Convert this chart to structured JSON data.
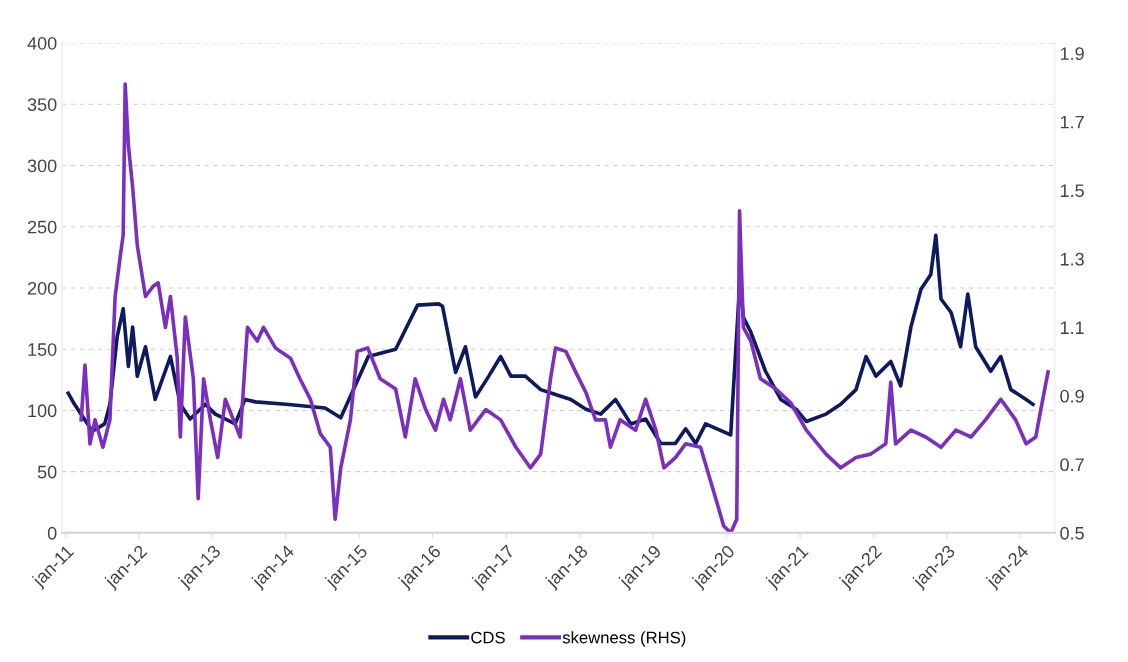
{
  "chart_data": {
    "type": "line",
    "xlim": [
      "2010-12-15",
      "2024-06-20"
    ],
    "xticks": [
      {
        "value": "2011-01-01",
        "label": "jan-11"
      },
      {
        "value": "2012-01-01",
        "label": "jan-12"
      },
      {
        "value": "2013-01-01",
        "label": "jan-13"
      },
      {
        "value": "2014-01-01",
        "label": "jan-14"
      },
      {
        "value": "2015-01-01",
        "label": "jan-15"
      },
      {
        "value": "2016-01-01",
        "label": "jan-16"
      },
      {
        "value": "2017-01-01",
        "label": "jan-17"
      },
      {
        "value": "2018-01-01",
        "label": "jan-18"
      },
      {
        "value": "2019-01-01",
        "label": "jan-19"
      },
      {
        "value": "2020-01-01",
        "label": "jan-20"
      },
      {
        "value": "2021-01-01",
        "label": "jan-21"
      },
      {
        "value": "2022-01-01",
        "label": "jan-22"
      },
      {
        "value": "2023-01-01",
        "label": "jan-23"
      },
      {
        "value": "2024-01-01",
        "label": "jan-24"
      }
    ],
    "ylim": [
      0,
      400
    ],
    "yticks": [
      0,
      50,
      100,
      150,
      200,
      250,
      300,
      350,
      400
    ],
    "y2lim": [
      0.5,
      1.93
    ],
    "y2ticks": [
      0.5,
      0.7,
      0.9,
      1.1,
      1.3,
      1.5,
      1.7,
      1.9
    ],
    "grid": "y",
    "legend": "bottom",
    "line_style": "solid",
    "series": [
      {
        "name": "CDS",
        "color": "#0d1b5e",
        "x": [
          "2011-01-15",
          "2011-02-15",
          "2011-05-15",
          "2011-07-15",
          "2011-08-10",
          "2011-09-15",
          "2011-10-15",
          "2011-11-10",
          "2011-12-01",
          "2011-12-24",
          "2012-02-03",
          "2012-03-22",
          "2012-04-15",
          "2012-06-06",
          "2012-07-25",
          "2012-09-12",
          "2012-11-27",
          "2013-01-15",
          "2013-04-24",
          "2013-06-12",
          "2013-08-03",
          "2014-01-01",
          "2014-07-15",
          "2014-10-01",
          "2015-02-15",
          "2015-07-01",
          "2015-10-18",
          "2016-02-01",
          "2016-02-19",
          "2016-04-24",
          "2016-06-12",
          "2016-08-01",
          "2016-10-06",
          "2016-12-04",
          "2017-01-24",
          "2017-04-06",
          "2017-06-21",
          "2017-09-03",
          "2017-11-18",
          "2018-02-01",
          "2018-04-15",
          "2018-06-28",
          "2018-09-12",
          "2018-11-25",
          "2019-02-08",
          "2019-04-22",
          "2019-06-12",
          "2019-08-01",
          "2019-09-19",
          "2020-01-22",
          "2020-03-08",
          "2020-03-25",
          "2020-05-01",
          "2020-07-13",
          "2020-09-27",
          "2020-12-12",
          "2021-02-01",
          "2021-05-10",
          "2021-07-22",
          "2021-10-06",
          "2021-11-25",
          "2022-01-13",
          "2022-03-28",
          "2022-05-16",
          "2022-07-06",
          "2022-08-25",
          "2022-10-13",
          "2022-11-07",
          "2022-12-03",
          "2023-01-22",
          "2023-03-10",
          "2023-04-15",
          "2023-05-24",
          "2023-08-07",
          "2023-09-26",
          "2023-11-15",
          "2024-01-30",
          "2024-03-04"
        ],
        "values": [
          114,
          105,
          83,
          89,
          105,
          160,
          183,
          136,
          168,
          128,
          152,
          109,
          120,
          144,
          105,
          93,
          105,
          97,
          89,
          109,
          107,
          105,
          102,
          94,
          144,
          150,
          186,
          187,
          185,
          131,
          152,
          111,
          128,
          144,
          128,
          128,
          117,
          113,
          109,
          101,
          97,
          109,
          89,
          93,
          73,
          73,
          85,
          73,
          89,
          80,
          207,
          176,
          164,
          132,
          109,
          101,
          91,
          97,
          105,
          117,
          144,
          128,
          140,
          120,
          168,
          199,
          211,
          243,
          191,
          180,
          152,
          195,
          152,
          132,
          144,
          117,
          109,
          105
        ]
      },
      {
        "name": "skewness (RHS)",
        "color": "#7b2fbe",
        "axis": "y2",
        "x": [
          "2011-03-20",
          "2011-04-08",
          "2011-05-03",
          "2011-05-28",
          "2011-07-06",
          "2011-08-10",
          "2011-09-05",
          "2011-10-01",
          "2011-10-15",
          "2011-10-25",
          "2011-11-10",
          "2011-12-01",
          "2011-12-24",
          "2012-02-03",
          "2012-03-12",
          "2012-04-06",
          "2012-05-12",
          "2012-06-06",
          "2012-07-10",
          "2012-07-25",
          "2012-08-19",
          "2012-09-28",
          "2012-10-22",
          "2012-11-18",
          "2012-12-22",
          "2013-01-27",
          "2013-03-06",
          "2013-05-19",
          "2013-06-24",
          "2013-08-12",
          "2013-09-12",
          "2013-11-10",
          "2014-01-24",
          "2014-03-12",
          "2014-05-03",
          "2014-06-21",
          "2014-08-10",
          "2014-09-03",
          "2014-10-01",
          "2014-11-18",
          "2014-12-22",
          "2015-02-12",
          "2015-04-15",
          "2015-07-01",
          "2015-08-18",
          "2015-10-06",
          "2015-11-27",
          "2016-01-15",
          "2016-02-24",
          "2016-03-28",
          "2016-05-18",
          "2016-07-06",
          "2016-09-21",
          "2016-12-04",
          "2017-02-18",
          "2017-05-01",
          "2017-06-21",
          "2017-08-09",
          "2017-09-03",
          "2017-10-24",
          "2017-12-12",
          "2018-02-01",
          "2018-03-21",
          "2018-05-09",
          "2018-06-03",
          "2018-07-21",
          "2018-10-06",
          "2018-11-25",
          "2019-01-15",
          "2019-02-24",
          "2019-04-22",
          "2019-06-12",
          "2019-08-25",
          "2019-11-09",
          "2019-12-18",
          "2020-01-22",
          "2020-02-21",
          "2020-03-06",
          "2020-03-25",
          "2020-05-01",
          "2020-06-18",
          "2020-09-03",
          "2020-11-15",
          "2021-02-01",
          "2021-05-10",
          "2021-07-22",
          "2021-10-06",
          "2021-12-18",
          "2022-03-03",
          "2022-03-28",
          "2022-04-21",
          "2022-07-06",
          "2022-09-18",
          "2022-12-03",
          "2023-02-15",
          "2023-05-01",
          "2023-07-12",
          "2023-09-26",
          "2023-12-09",
          "2024-01-30",
          "2024-03-18",
          "2024-04-12",
          "2024-05-18"
        ],
        "values": [
          0.83,
          0.99,
          0.76,
          0.83,
          0.75,
          0.83,
          1.19,
          1.31,
          1.37,
          1.81,
          1.63,
          1.51,
          1.34,
          1.19,
          1.22,
          1.23,
          1.1,
          1.19,
          1.01,
          0.78,
          1.13,
          0.95,
          0.6,
          0.95,
          0.83,
          0.72,
          0.89,
          0.78,
          1.1,
          1.06,
          1.1,
          1.04,
          1.01,
          0.95,
          0.89,
          0.79,
          0.75,
          0.54,
          0.69,
          0.83,
          1.03,
          1.04,
          0.95,
          0.92,
          0.78,
          0.95,
          0.86,
          0.8,
          0.89,
          0.83,
          0.95,
          0.8,
          0.86,
          0.83,
          0.75,
          0.69,
          0.73,
          0.95,
          1.04,
          1.03,
          0.97,
          0.91,
          0.83,
          0.83,
          0.75,
          0.83,
          0.8,
          0.89,
          0.8,
          0.69,
          0.72,
          0.76,
          0.75,
          0.6,
          0.52,
          0.5,
          0.54,
          1.44,
          1.1,
          1.06,
          0.95,
          0.92,
          0.88,
          0.8,
          0.73,
          0.69,
          0.72,
          0.73,
          0.76,
          0.94,
          0.76,
          0.8,
          0.78,
          0.75,
          0.8,
          0.78,
          0.83,
          0.89,
          0.83,
          0.76,
          0.78,
          0.86,
          0.97
        ]
      }
    ]
  }
}
